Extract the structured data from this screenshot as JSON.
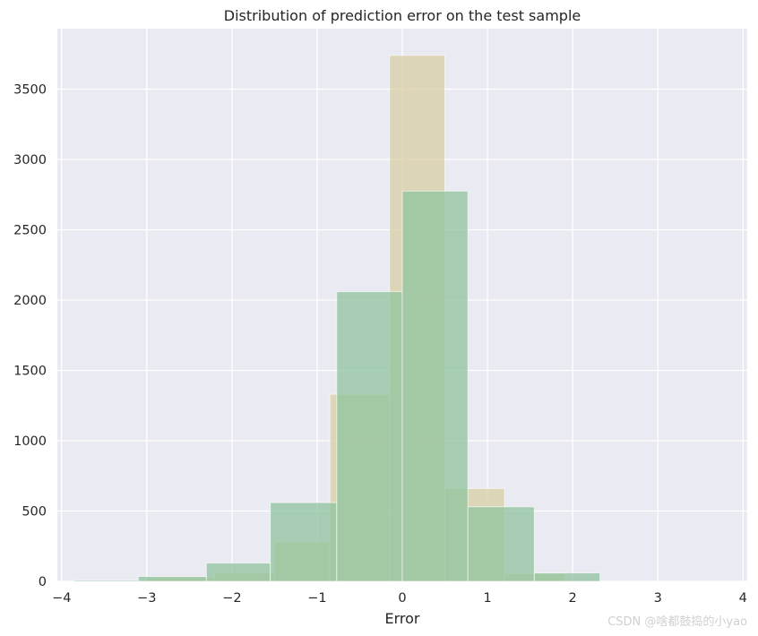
{
  "chart_data": {
    "type": "bar",
    "title": "Distribution of prediction error on the test sample",
    "xlabel": "Error",
    "ylabel": "",
    "xlim": [
      -4.05,
      4.05
    ],
    "ylim": [
      0,
      3930
    ],
    "xticks": [
      -4,
      -3,
      -2,
      -1,
      0,
      1,
      2,
      3,
      4
    ],
    "xtick_labels": [
      "−4",
      "−3",
      "−2",
      "−1",
      "0",
      "1",
      "2",
      "3",
      "4"
    ],
    "yticks": [
      0,
      500,
      1000,
      1500,
      2000,
      2500,
      3000,
      3500
    ],
    "ytick_labels": [
      "0",
      "500",
      "1000",
      "1500",
      "2000",
      "2500",
      "3000",
      "3500"
    ],
    "grid": true,
    "legend": null,
    "series": [
      {
        "color": "#d8cda3",
        "opacity": 0.75,
        "bins": [
          {
            "x0": -3.0,
            "x1": -2.2,
            "count": 25
          },
          {
            "x0": -2.2,
            "x1": -1.5,
            "count": 60
          },
          {
            "x0": -1.5,
            "x1": -0.85,
            "count": 280
          },
          {
            "x0": -0.85,
            "x1": -0.15,
            "count": 1330
          },
          {
            "x0": -0.15,
            "x1": 0.5,
            "count": 3740
          },
          {
            "x0": 0.5,
            "x1": 1.2,
            "count": 660
          },
          {
            "x0": 1.2,
            "x1": 1.9,
            "count": 55
          }
        ]
      },
      {
        "color": "#8fc39d",
        "opacity": 0.75,
        "bins": [
          {
            "x0": -3.85,
            "x1": -3.1,
            "count": 8
          },
          {
            "x0": -3.1,
            "x1": -2.3,
            "count": 35
          },
          {
            "x0": -2.3,
            "x1": -1.55,
            "count": 130
          },
          {
            "x0": -1.55,
            "x1": -0.77,
            "count": 560
          },
          {
            "x0": -0.77,
            "x1": 0.0,
            "count": 2060
          },
          {
            "x0": 0.0,
            "x1": 0.77,
            "count": 2775
          },
          {
            "x0": 0.77,
            "x1": 1.55,
            "count": 530
          },
          {
            "x0": 1.55,
            "x1": 2.32,
            "count": 60
          }
        ]
      }
    ]
  },
  "watermark": "CSDN @啥都鼓捣的小yao"
}
